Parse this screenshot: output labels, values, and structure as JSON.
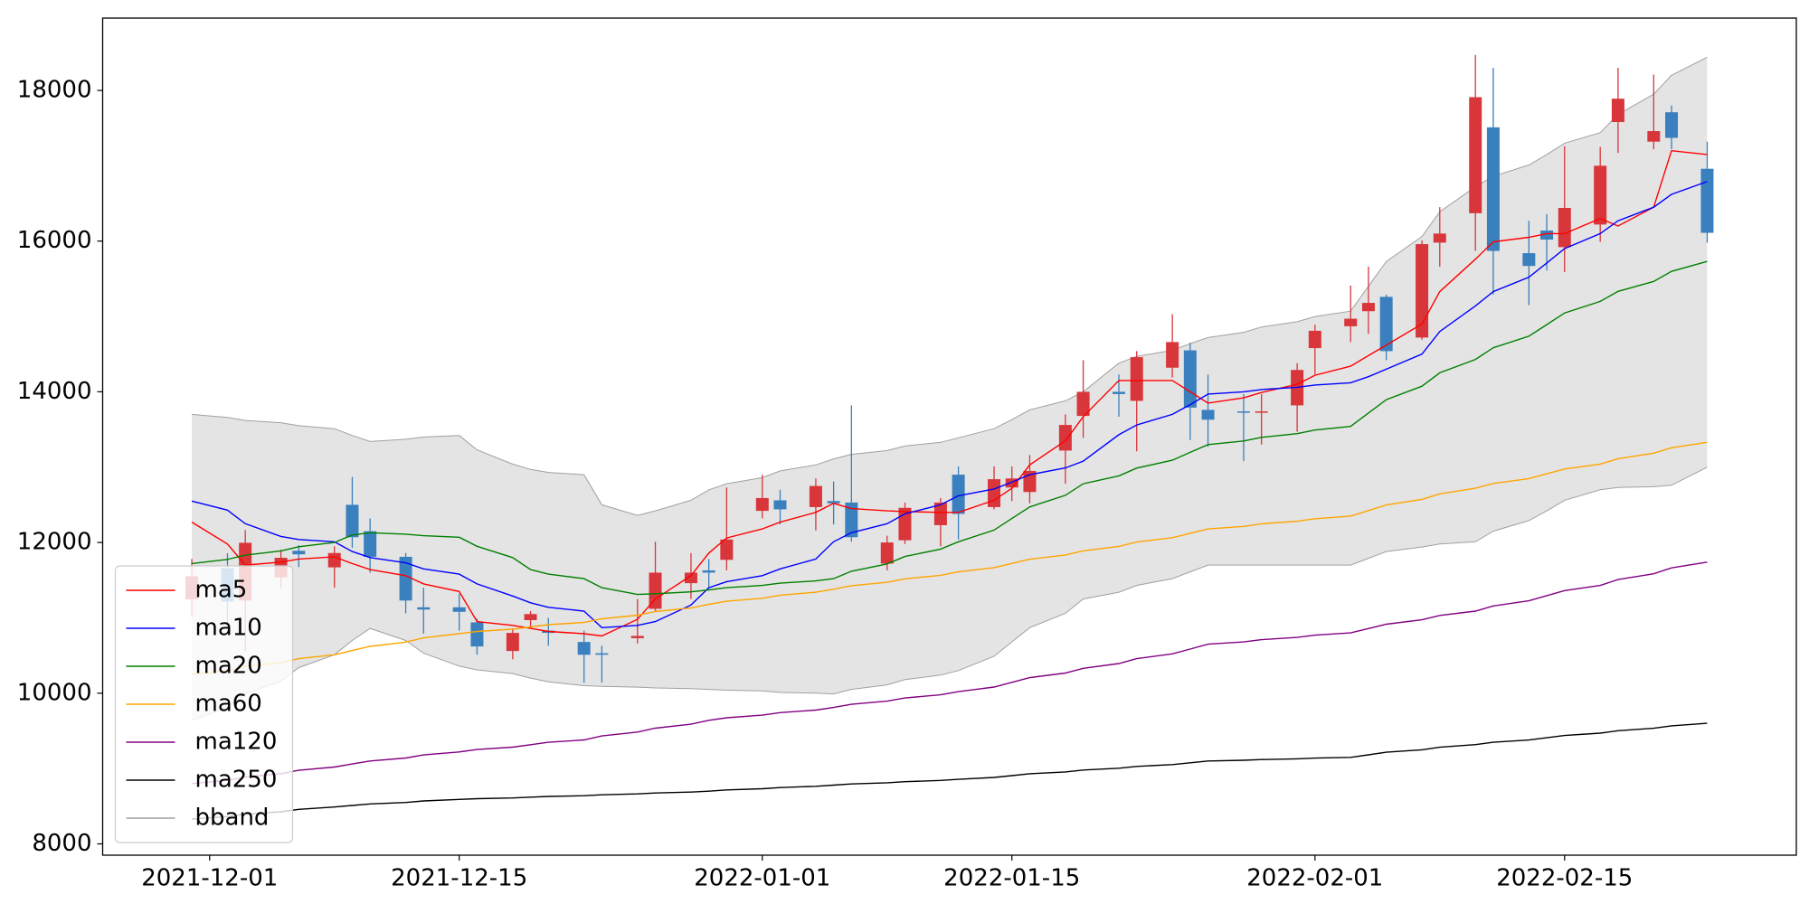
{
  "chart_data": {
    "type": "candlestick",
    "x": [
      "2021-11-30",
      "2021-12-02",
      "2021-12-03",
      "2021-12-05",
      "2021-12-06",
      "2021-12-08",
      "2021-12-09",
      "2021-12-10",
      "2021-12-12",
      "2021-12-13",
      "2021-12-15",
      "2021-12-16",
      "2021-12-18",
      "2021-12-19",
      "2021-12-20",
      "2021-12-22",
      "2021-12-23",
      "2021-12-25",
      "2021-12-26",
      "2021-12-28",
      "2021-12-29",
      "2021-12-30",
      "2022-01-01",
      "2022-01-02",
      "2022-01-04",
      "2022-01-05",
      "2022-01-06",
      "2022-01-08",
      "2022-01-09",
      "2022-01-11",
      "2022-01-12",
      "2022-01-14",
      "2022-01-15",
      "2022-01-16",
      "2022-01-18",
      "2022-01-19",
      "2022-01-21",
      "2022-01-22",
      "2022-01-24",
      "2022-01-25",
      "2022-01-26",
      "2022-01-28",
      "2022-01-29",
      "2022-01-31",
      "2022-02-01",
      "2022-02-03",
      "2022-02-04",
      "2022-02-05",
      "2022-02-07",
      "2022-02-08",
      "2022-02-10",
      "2022-02-11",
      "2022-02-13",
      "2022-02-14",
      "2022-02-15",
      "2022-02-17",
      "2022-02-18",
      "2022-02-20",
      "2022-02-21",
      "2022-02-23"
    ],
    "open": [
      11246,
      11659,
      11230,
      11537,
      11890,
      11670,
      12500,
      12150,
      11810,
      11140,
      11140,
      10940,
      10560,
      10970,
      10830,
      10680,
      10530,
      10730,
      11120,
      11460,
      11630,
      11770,
      12420,
      12560,
      12470,
      12550,
      12530,
      11720,
      12030,
      12230,
      12900,
      12470,
      12730,
      12670,
      13220,
      13680,
      14000,
      13880,
      14320,
      14550,
      13760,
      13740,
      13730,
      13820,
      14580,
      14870,
      15070,
      15260,
      14720,
      15980,
      16370,
      17510,
      15840,
      16140,
      15920,
      16220,
      17580,
      17320,
      17710,
      16960
    ],
    "high": [
      11782,
      11858,
      12164,
      11904,
      11965,
      11950,
      12870,
      12320,
      11860,
      11400,
      11320,
      10990,
      10860,
      11090,
      11000,
      10830,
      10630,
      11250,
      12010,
      11860,
      11780,
      12730,
      12900,
      12700,
      12850,
      12810,
      13820,
      12090,
      12530,
      12590,
      13010,
      13010,
      13010,
      13160,
      13700,
      14420,
      14230,
      14540,
      15030,
      14650,
      14230,
      13970,
      13970,
      14380,
      14890,
      15410,
      15660,
      15290,
      16010,
      16450,
      18470,
      18300,
      16270,
      16360,
      17260,
      17250,
      18300,
      18210,
      17800,
      17320
    ],
    "low": [
      11016,
      10786,
      10557,
      11399,
      11674,
      11400,
      11930,
      11600,
      11060,
      10790,
      10830,
      10510,
      10450,
      10860,
      10630,
      10140,
      10140,
      10660,
      11090,
      11250,
      11400,
      11630,
      12320,
      12240,
      12160,
      12240,
      12010,
      11630,
      11980,
      11950,
      12040,
      12440,
      12550,
      12520,
      12780,
      13390,
      13670,
      13210,
      14190,
      13360,
      13270,
      13080,
      13300,
      13470,
      14230,
      14660,
      14770,
      14420,
      14690,
      15660,
      15870,
      15290,
      15150,
      15610,
      15590,
      15990,
      17170,
      17220,
      17220,
      15980
    ],
    "close": [
      11552,
      11215,
      11996,
      11797,
      11843,
      11860,
      12070,
      11810,
      11230,
      11110,
      11080,
      10620,
      10800,
      11050,
      10800,
      10510,
      10510,
      10760,
      11600,
      11600,
      11600,
      12040,
      12590,
      12440,
      12750,
      12520,
      12070,
      12000,
      12460,
      12530,
      12380,
      12840,
      12850,
      12950,
      13560,
      14000,
      13970,
      14460,
      14660,
      13790,
      13630,
      13730,
      13740,
      14290,
      14810,
      14970,
      15180,
      14540,
      15960,
      16100,
      17910,
      15870,
      15670,
      16020,
      16440,
      17000,
      17890,
      17460,
      17370,
      16110
    ],
    "up_color": "#d8363a",
    "down_color": "#3a80be",
    "series": [
      {
        "name": "ma5",
        "color": "#ff0000",
        "values": [
          12270,
          11980,
          11700,
          11740,
          11780,
          11810,
          11720,
          11640,
          11560,
          11450,
          11350,
          10950,
          10900,
          10860,
          10820,
          10790,
          10760,
          10980,
          11250,
          11560,
          11860,
          12060,
          12180,
          12270,
          12400,
          12520,
          12450,
          12420,
          12410,
          12400,
          12400,
          12560,
          12720,
          13030,
          13350,
          13670,
          14150,
          14150,
          14150,
          14000,
          13850,
          13920,
          13990,
          14100,
          14220,
          14340,
          14480,
          14620,
          14900,
          15330,
          15760,
          15990,
          16050,
          16100,
          16100,
          16300,
          16200,
          16450,
          17200,
          17150
        ]
      },
      {
        "name": "ma10",
        "color": "#0000ff",
        "values": [
          12550,
          12430,
          12250,
          12080,
          12040,
          12010,
          11880,
          11800,
          11730,
          11650,
          11580,
          11450,
          11290,
          11200,
          11140,
          11090,
          10870,
          10900,
          10950,
          11170,
          11400,
          11480,
          11560,
          11650,
          11780,
          12010,
          12130,
          12250,
          12380,
          12500,
          12620,
          12710,
          12800,
          12900,
          12990,
          13080,
          13430,
          13560,
          13700,
          13830,
          13970,
          14000,
          14030,
          14060,
          14090,
          14120,
          14200,
          14300,
          14500,
          14800,
          15140,
          15330,
          15520,
          15710,
          15900,
          16100,
          16270,
          16450,
          16620,
          16790
        ]
      },
      {
        "name": "ma20",
        "color": "#008000",
        "values": [
          11720,
          11776,
          11832,
          11888,
          11944,
          12000,
          12100,
          12130,
          12110,
          12090,
          12070,
          11950,
          11800,
          11640,
          11580,
          11520,
          11400,
          11310,
          11320,
          11345,
          11370,
          11400,
          11430,
          11460,
          11490,
          11520,
          11618,
          11716,
          11814,
          11912,
          12010,
          12164,
          12318,
          12472,
          12626,
          12780,
          12884,
          12988,
          13092,
          13196,
          13300,
          13348,
          13396,
          13444,
          13492,
          13540,
          13718,
          13896,
          14074,
          14252,
          14430,
          14584,
          14738,
          14892,
          15046,
          15200,
          15333,
          15465,
          15598,
          15730
        ]
      },
      {
        "name": "ma60",
        "color": "#ffa500",
        "values": [
          10250,
          10302,
          10354,
          10406,
          10458,
          10510,
          10566,
          10622,
          10678,
          10734,
          10790,
          10820,
          10850,
          10880,
          10910,
          10940,
          10988,
          11036,
          11084,
          11132,
          11180,
          11220,
          11260,
          11300,
          11340,
          11380,
          11426,
          11472,
          11518,
          11564,
          11610,
          11666,
          11722,
          11778,
          11834,
          11890,
          11948,
          12006,
          12064,
          12122,
          12180,
          12214,
          12248,
          12282,
          12316,
          12350,
          12424,
          12498,
          12572,
          12646,
          12720,
          12784,
          12848,
          12912,
          12976,
          13040,
          13112,
          13185,
          13257,
          13330
        ]
      },
      {
        "name": "ma120",
        "color": "#800080",
        "values": [
          8800,
          8844,
          8888,
          8932,
          8976,
          9020,
          9060,
          9100,
          9140,
          9180,
          9220,
          9252,
          9284,
          9316,
          9348,
          9380,
          9432,
          9484,
          9536,
          9588,
          9640,
          9674,
          9708,
          9742,
          9776,
          9810,
          9852,
          9894,
          9936,
          9978,
          10020,
          10082,
          10144,
          10206,
          10268,
          10330,
          10394,
          10458,
          10522,
          10586,
          10650,
          10680,
          10710,
          10740,
          10770,
          10800,
          10858,
          10916,
          10974,
          11032,
          11090,
          11158,
          11226,
          11294,
          11362,
          11430,
          11508,
          11585,
          11663,
          11740
        ]
      },
      {
        "name": "ma250",
        "color": "#000000",
        "values": [
          8330,
          8362,
          8394,
          8426,
          8458,
          8490,
          8510,
          8530,
          8550,
          8570,
          8590,
          8600,
          8610,
          8620,
          8630,
          8640,
          8652,
          8664,
          8676,
          8688,
          8700,
          8716,
          8732,
          8748,
          8764,
          8780,
          8795,
          8811,
          8826,
          8842,
          8857,
          8882,
          8906,
          8931,
          8955,
          8980,
          9004,
          9028,
          9052,
          9076,
          9100,
          9110,
          9119,
          9129,
          9138,
          9148,
          9182,
          9216,
          9249,
          9283,
          9317,
          9348,
          9378,
          9409,
          9439,
          9470,
          9502,
          9535,
          9567,
          9600
        ]
      }
    ],
    "bband": {
      "name": "bband",
      "color": "#a0a0a0",
      "fill": "#e4e4e4",
      "upper": [
        13700,
        13660,
        13620,
        13590,
        13550,
        13510,
        13420,
        13340,
        13370,
        13400,
        13420,
        13230,
        13040,
        12970,
        12930,
        12900,
        12500,
        12360,
        12420,
        12560,
        12700,
        12780,
        12860,
        12950,
        13030,
        13110,
        13170,
        13220,
        13280,
        13330,
        13390,
        13510,
        13630,
        13760,
        13880,
        14000,
        14380,
        14470,
        14550,
        14640,
        14720,
        14790,
        14860,
        14930,
        15000,
        15070,
        15400,
        15730,
        16060,
        16390,
        16720,
        16860,
        17010,
        17150,
        17300,
        17440,
        17680,
        17950,
        18200,
        18440
      ],
      "lower": [
        9640,
        9810,
        9990,
        10160,
        10340,
        10510,
        10700,
        10860,
        10700,
        10530,
        10360,
        10310,
        10260,
        10200,
        10150,
        10100,
        10090,
        10080,
        10070,
        10060,
        10050,
        10040,
        10030,
        10010,
        10000,
        9990,
        10050,
        10110,
        10180,
        10240,
        10300,
        10490,
        10680,
        10870,
        11060,
        11250,
        11340,
        11430,
        11520,
        11610,
        11700,
        11700,
        11700,
        11700,
        11700,
        11700,
        11790,
        11880,
        11940,
        11980,
        12010,
        12150,
        12290,
        12420,
        12560,
        12700,
        12730,
        12740,
        12760,
        13000
      ]
    },
    "xlim": [
      "2021-11-25",
      "2022-02-28"
    ],
    "xticks": [
      "2021-12-01",
      "2021-12-15",
      "2022-01-01",
      "2022-01-15",
      "2022-02-01",
      "2022-02-15"
    ],
    "ylim": [
      7850,
      18960
    ],
    "yticks": [
      8000,
      10000,
      12000,
      14000,
      16000,
      18000
    ],
    "legend": "lower left"
  }
}
